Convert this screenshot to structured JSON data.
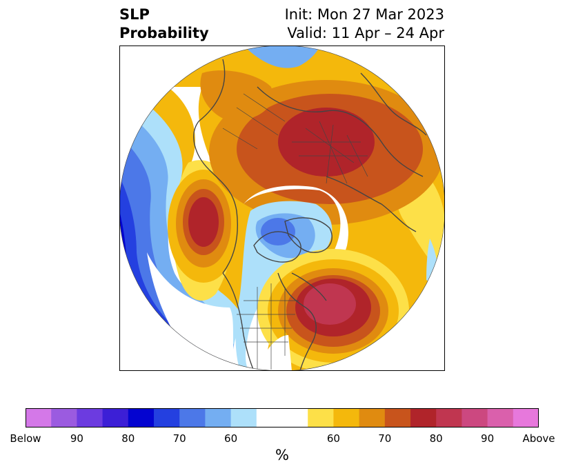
{
  "title": {
    "variable": "SLP",
    "subtitle": "Probability",
    "init": "Init: Mon 27 Mar 2023",
    "valid": "Valid: 11 Apr – 24 Apr"
  },
  "map": {
    "projection": "north-polar-stereographic",
    "features": [
      {
        "name": "north-pacific-above-center",
        "category": "above",
        "level": 85
      },
      {
        "name": "north-atlantic-above-center",
        "category": "above",
        "level": 85
      },
      {
        "name": "eurasia-arctic-above-center",
        "category": "above",
        "level": 80
      },
      {
        "name": "canada-greenland-below-center",
        "category": "below",
        "level": 60
      },
      {
        "name": "far-pacific-below-edge",
        "category": "below",
        "level": 75
      }
    ]
  },
  "colorbar": {
    "label": "%",
    "colors": [
      "#d478e8",
      "#9b5be0",
      "#6c3be0",
      "#3c1fd6",
      "#0404d0",
      "#2440e0",
      "#4c78e8",
      "#74aef2",
      "#ade0fa",
      "#ffffff",
      "#ffffff",
      "#fde048",
      "#f4b80c",
      "#e08b10",
      "#c8541c",
      "#b0242a",
      "#c03650",
      "#cc4880",
      "#da60ac",
      "#e778dc"
    ],
    "ticks": [
      "Below",
      "90",
      "80",
      "70",
      "60",
      "60",
      "70",
      "80",
      "90",
      "Above"
    ],
    "tick_positions": [
      0,
      2,
      4,
      6,
      8,
      12,
      14,
      16,
      18,
      20
    ]
  }
}
